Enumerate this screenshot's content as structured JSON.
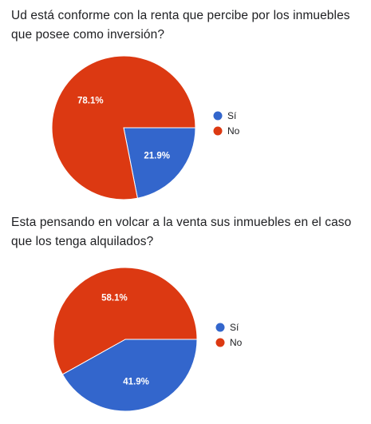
{
  "questions": [
    {
      "title": "Ud está conforme con la renta que percibe por los inmuebles que posee como inversión?"
    },
    {
      "title": "Esta pensando en volcar a la venta sus inmuebles en el caso que los tenga alquilados?"
    }
  ],
  "chart_data": [
    {
      "type": "pie",
      "categories": [
        "Sí",
        "No"
      ],
      "values": [
        21.9,
        78.1
      ],
      "labels": [
        "21.9%",
        "78.1%"
      ],
      "colors": [
        "#3366cc",
        "#dc3912"
      ],
      "legend_position": "right"
    },
    {
      "type": "pie",
      "categories": [
        "Sí",
        "No"
      ],
      "values": [
        41.9,
        58.1
      ],
      "labels": [
        "41.9%",
        "58.1%"
      ],
      "colors": [
        "#3366cc",
        "#dc3912"
      ],
      "legend_position": "right"
    }
  ]
}
